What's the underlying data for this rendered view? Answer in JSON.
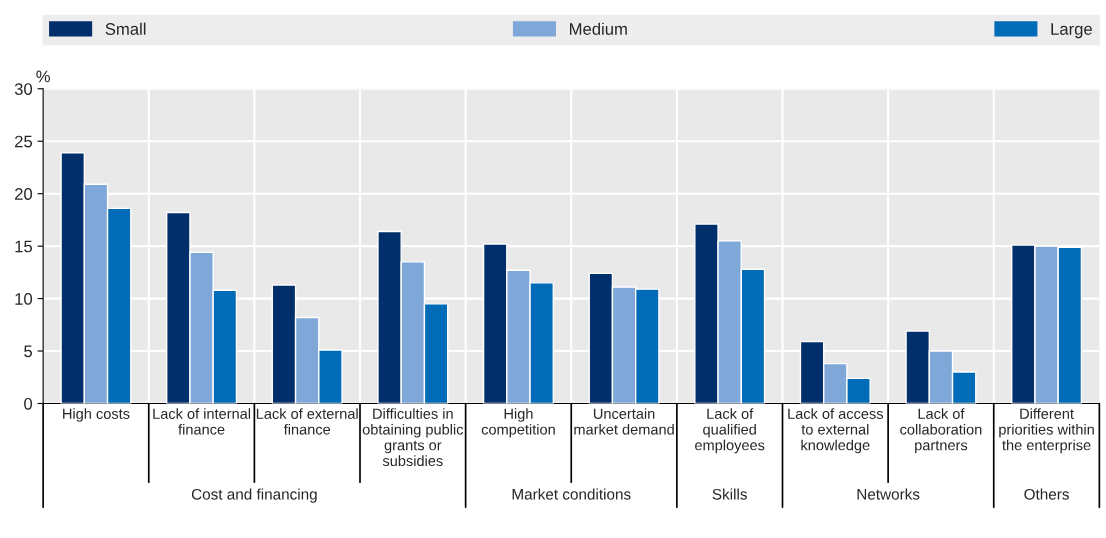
{
  "chart_data": {
    "type": "bar",
    "categories": [
      "High costs",
      "Lack of internal\nfinance",
      "Lack of external\nfinance",
      "Difficulties in\nobtaining public\ngrants or\nsubsidies",
      "High\ncompetition",
      "Uncertain\nmarket demand",
      "Lack of\nqualified\nemployees",
      "Lack of access\nto external\nknowledge",
      "Lack of\ncollaboration\npartners",
      "Different\npriorities within\nthe enterprise"
    ],
    "series": [
      {
        "name": "Small",
        "color": "#002f6c",
        "values": [
          23.9,
          18.2,
          11.3,
          16.4,
          15.2,
          12.4,
          17.1,
          5.9,
          6.9,
          15.1
        ]
      },
      {
        "name": "Medium",
        "color": "#7fa8d9",
        "values": [
          20.9,
          14.4,
          8.2,
          13.5,
          12.7,
          11.1,
          15.5,
          3.8,
          5.0,
          15.0
        ]
      },
      {
        "name": "Large",
        "color": "#006bb6",
        "values": [
          18.6,
          10.8,
          5.1,
          9.5,
          11.5,
          10.9,
          12.8,
          2.4,
          3.0,
          14.9
        ]
      }
    ],
    "ylabel": "%",
    "ylim": [
      0,
      30
    ],
    "yticks": [
      0,
      5,
      10,
      15,
      20,
      25,
      30
    ],
    "annotations": [
      "Cost and financing",
      "Market conditions",
      "Skills",
      "Networks",
      "Others"
    ],
    "grid": true,
    "legend": "top"
  }
}
